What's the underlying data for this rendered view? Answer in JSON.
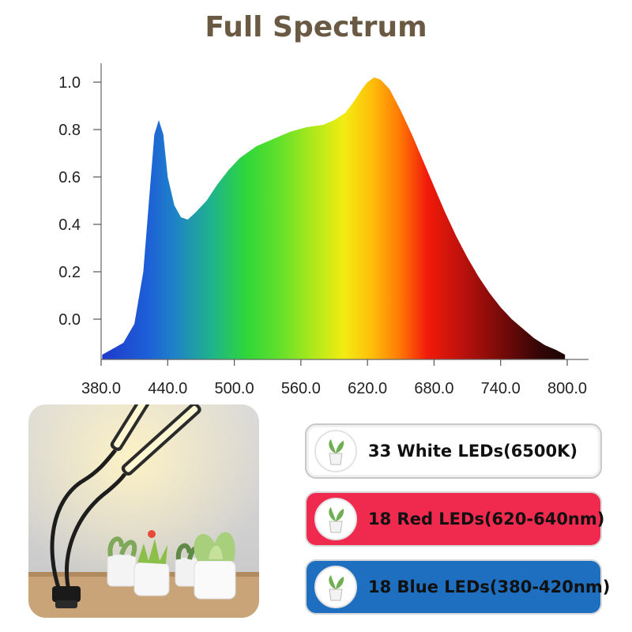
{
  "chart_data": {
    "type": "area",
    "title": "Full Spectrum",
    "xlabel": "",
    "ylabel": "",
    "xlim": [
      380,
      800
    ],
    "ylim": [
      -0.16,
      1.08
    ],
    "x_ticks": [
      "380.0",
      "440.0",
      "500.0",
      "560.0",
      "620.0",
      "680.0",
      "740.0",
      "800.0"
    ],
    "y_ticks": [
      "0.0",
      "0.2",
      "0.4",
      "0.6",
      "0.8",
      "1.0"
    ],
    "x_tick_values": [
      380,
      440,
      500,
      560,
      620,
      680,
      740,
      800
    ],
    "y_tick_values": [
      0,
      0.2,
      0.4,
      0.6,
      0.8,
      1.0
    ],
    "grid": false,
    "series": [
      {
        "x": [
          381,
          400,
          410,
          418,
          424,
          428,
          432,
          436,
          440,
          446,
          452,
          458,
          465,
          475,
          485,
          495,
          505,
          520,
          535,
          550,
          565,
          580,
          590,
          600,
          608,
          615,
          620,
          626,
          632,
          640,
          650,
          660,
          670,
          680,
          690,
          700,
          710,
          720,
          730,
          740,
          750,
          760,
          770,
          780,
          790,
          798
        ],
        "y": [
          -0.15,
          -0.1,
          -0.02,
          0.2,
          0.55,
          0.78,
          0.84,
          0.78,
          0.6,
          0.48,
          0.43,
          0.42,
          0.45,
          0.5,
          0.57,
          0.63,
          0.68,
          0.73,
          0.76,
          0.79,
          0.81,
          0.82,
          0.84,
          0.87,
          0.92,
          0.97,
          1.0,
          1.02,
          1.01,
          0.97,
          0.88,
          0.78,
          0.67,
          0.56,
          0.45,
          0.35,
          0.26,
          0.18,
          0.11,
          0.05,
          0.0,
          -0.04,
          -0.08,
          -0.11,
          -0.13,
          -0.15
        ]
      }
    ]
  },
  "leds": [
    {
      "label": "33 White LEDs(6500K)",
      "color": "#ffffff"
    },
    {
      "label": "18 Red LEDs(620-640nm)",
      "color": "#f0294f"
    },
    {
      "label": "18 Blue LEDs(380-420nm)",
      "color": "#1e6fbf"
    }
  ],
  "icons": {
    "plant_badge": "potted-plant-icon"
  }
}
